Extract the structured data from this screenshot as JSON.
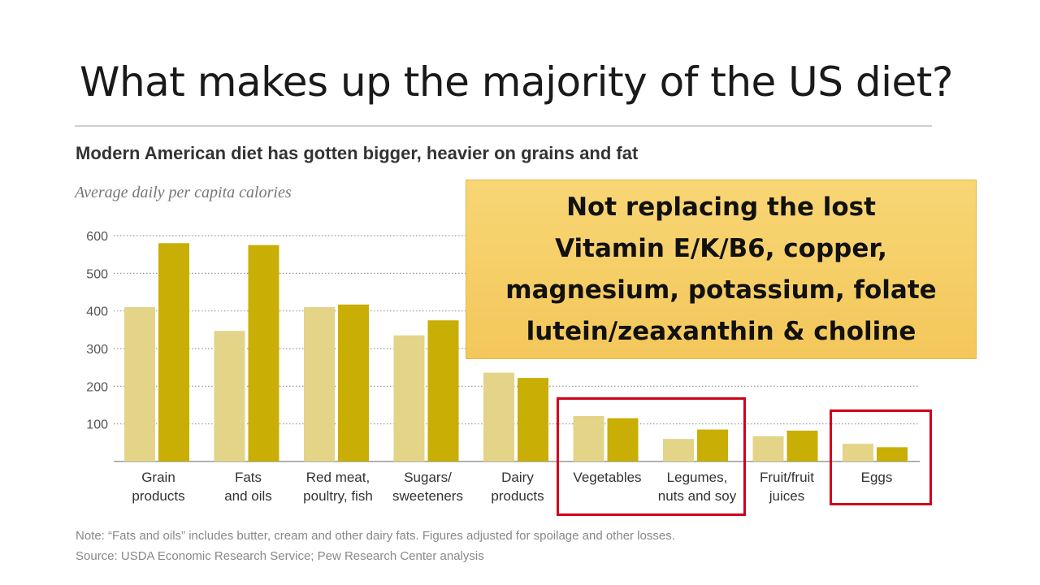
{
  "slide": {
    "title": "What makes up the majority of the US diet?"
  },
  "chart_data": {
    "type": "bar",
    "title": "Modern American diet has gotten bigger, heavier on grains and fat",
    "subtitle": "Average daily per capita calories",
    "categories": [
      [
        "Grain",
        "products"
      ],
      [
        "Fats",
        "and oils"
      ],
      [
        "Red meat,",
        "poultry, fish"
      ],
      [
        "Sugars/",
        "sweeteners"
      ],
      [
        "Dairy",
        "products"
      ],
      [
        "Vegetables",
        ""
      ],
      [
        "Legumes,",
        "nuts and soy"
      ],
      [
        "Fruit/fruit",
        "juices"
      ],
      [
        "Eggs",
        ""
      ]
    ],
    "series": [
      {
        "values": [
          410,
          347,
          410,
          335,
          236,
          121,
          60,
          67,
          47
        ],
        "color": "#e3d488"
      },
      {
        "values": [
          580,
          575,
          417,
          375,
          222,
          115,
          85,
          82,
          38
        ],
        "color": "#c9ae05"
      }
    ],
    "y_ticks": [
      100,
      200,
      300,
      400,
      500,
      600
    ],
    "ylim": [
      0,
      640
    ],
    "grid": "dotted"
  },
  "callout": {
    "lines": [
      "Not replacing the lost",
      "Vitamin E/K/B6, copper,",
      "magnesium, potassium, folate",
      "lutein/zeaxanthin & choline"
    ]
  },
  "footnote": {
    "note": "Note: “Fats and oils” includes butter, cream and other dairy fats. Figures adjusted for spoilage and other losses.",
    "source": "Source: USDA Economic Research Service; Pew Research Center analysis"
  },
  "colors": {
    "highlight": "#d0021b",
    "callout_bg": "#f6cf6a"
  }
}
